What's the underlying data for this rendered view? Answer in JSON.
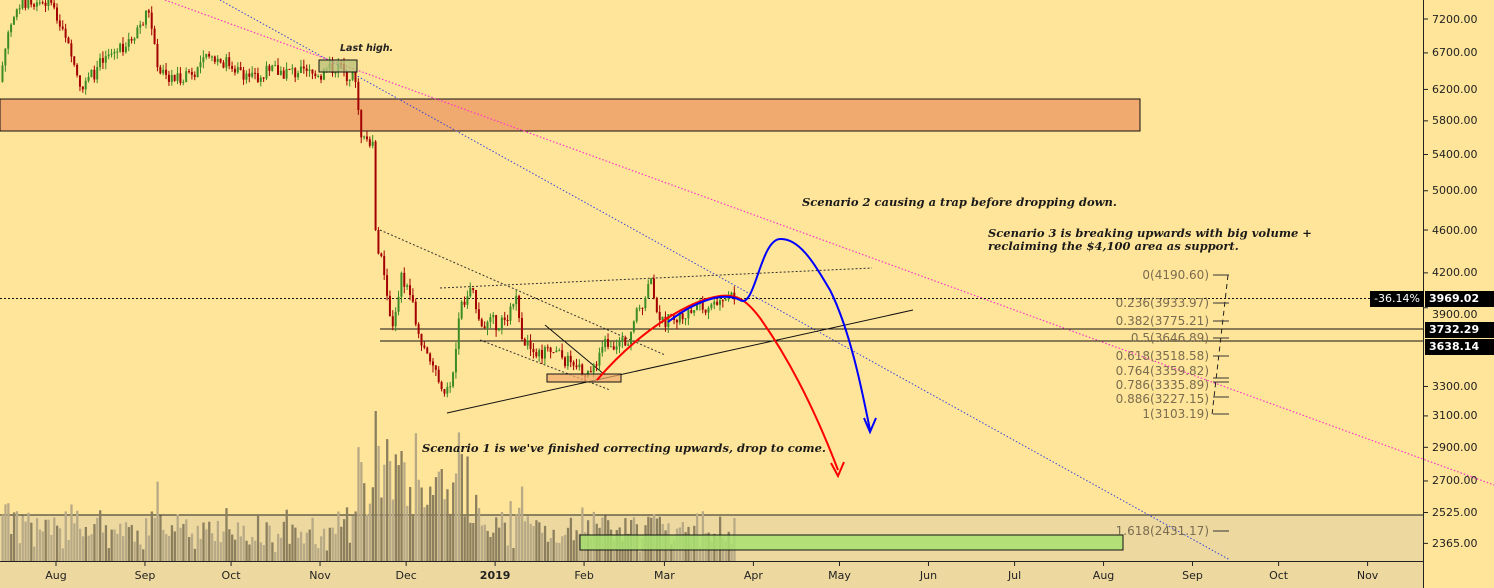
{
  "chart_data": {
    "type": "candlestick",
    "scale": "log",
    "ylim": [
      2300,
      7500
    ],
    "price_ticks": [
      7200,
      6700,
      6200,
      5800,
      5400,
      5000,
      4600,
      4200,
      3900,
      3300,
      3100,
      2900,
      2700,
      2525,
      2365
    ],
    "price_tick_labels": [
      "7200.00",
      "6700.00",
      "6200.00",
      "5800.00",
      "5400.00",
      "5000.00",
      "4600.00",
      "4200.00",
      "3900.00",
      "3300.00",
      "3100.00",
      "2900.00",
      "2700.00",
      "2525.00",
      "2365.00"
    ],
    "time_ticks": [
      {
        "date": "2018-08-01",
        "label": "Aug"
      },
      {
        "date": "2018-09-01",
        "label": "Sep"
      },
      {
        "date": "2018-10-01",
        "label": "Oct"
      },
      {
        "date": "2018-11-01",
        "label": "Nov"
      },
      {
        "date": "2018-12-01",
        "label": "Dec"
      },
      {
        "date": "2019-01-01",
        "label": "2019"
      },
      {
        "date": "2019-02-01",
        "label": "Feb"
      },
      {
        "date": "2019-03-01",
        "label": "Mar"
      },
      {
        "date": "2019-04-01",
        "label": "Apr"
      },
      {
        "date": "2019-05-01",
        "label": "May"
      },
      {
        "date": "2019-06-01",
        "label": "Jun"
      },
      {
        "date": "2019-07-01",
        "label": "Jul"
      },
      {
        "date": "2019-08-01",
        "label": "Aug"
      },
      {
        "date": "2019-09-01",
        "label": "Sep"
      },
      {
        "date": "2019-10-01",
        "label": "Oct"
      },
      {
        "date": "2019-11-01",
        "label": "Nov"
      }
    ],
    "price_path": [
      [
        "2018-07-12",
        6300
      ],
      [
        "2018-07-15",
        7000
      ],
      [
        "2018-07-18",
        7350
      ],
      [
        "2018-07-22",
        7500
      ],
      [
        "2018-07-30",
        7450
      ],
      [
        "2018-08-06",
        6650
      ],
      [
        "2018-08-10",
        6200
      ],
      [
        "2018-08-15",
        6500
      ],
      [
        "2018-08-26",
        6900
      ],
      [
        "2018-09-02",
        7300
      ],
      [
        "2018-09-05",
        6500
      ],
      [
        "2018-09-09",
        6300
      ],
      [
        "2018-09-19",
        6500
      ],
      [
        "2018-09-24",
        6650
      ],
      [
        "2018-10-03",
        6500
      ],
      [
        "2018-10-10",
        6300
      ],
      [
        "2018-10-14",
        6450
      ],
      [
        "2018-10-24",
        6420
      ],
      [
        "2018-10-31",
        6380
      ],
      [
        "2018-11-07",
        6550
      ],
      [
        "2018-11-13",
        6300
      ],
      [
        "2018-11-15",
        5600
      ],
      [
        "2018-11-19",
        5550
      ],
      [
        "2018-11-20",
        4600
      ],
      [
        "2018-11-24",
        4000
      ],
      [
        "2018-11-26",
        3750
      ],
      [
        "2018-11-29",
        4200
      ],
      [
        "2018-12-03",
        3950
      ],
      [
        "2018-12-06",
        3600
      ],
      [
        "2018-12-10",
        3450
      ],
      [
        "2018-12-14",
        3250
      ],
      [
        "2018-12-17",
        3400
      ],
      [
        "2018-12-20",
        3950
      ],
      [
        "2018-12-24",
        4050
      ],
      [
        "2018-12-27",
        3750
      ],
      [
        "2019-01-04",
        3800
      ],
      [
        "2019-01-08",
        4000
      ],
      [
        "2019-01-10",
        3650
      ],
      [
        "2019-01-14",
        3550
      ],
      [
        "2019-01-21",
        3550
      ],
      [
        "2019-01-28",
        3450
      ],
      [
        "2019-02-03",
        3400
      ],
      [
        "2019-02-08",
        3650
      ],
      [
        "2019-02-15",
        3600
      ],
      [
        "2019-02-20",
        3900
      ],
      [
        "2019-02-24",
        4150
      ],
      [
        "2019-02-27",
        3800
      ],
      [
        "2019-03-04",
        3800
      ],
      [
        "2019-03-11",
        3880
      ],
      [
        "2019-03-18",
        3950
      ],
      [
        "2019-03-23",
        4000
      ],
      [
        "2019-03-25",
        3969.02
      ]
    ],
    "colors": {
      "background": "#FFE599",
      "up": "#3B8C25",
      "down": "#A30000",
      "volume_dark": "#8C7F5E",
      "volume_light": "#B8AA86",
      "zone": "#F0A96E",
      "scenario_up": "#0000FF",
      "scenario_down": "#FF0000",
      "trend_blue": "#3344DD",
      "trend_pink": "#FF33CC"
    },
    "current_price": {
      "value": "3969.02",
      "change": "-36.14%"
    },
    "level_tags": [
      "3732.29",
      "3638.14"
    ],
    "fib_levels": [
      "0(4190.60)",
      "0.236(3933.97)",
      "0.382(3775.21)",
      "0.5(3646.89)",
      "0.618(3518.58)",
      "0.764(3359.82)",
      "0.786(3335.89)",
      "0.886(3227.15)",
      "1(3103.19)",
      "1.618(2431.17)"
    ],
    "annotations": {
      "last_high": "Last high.",
      "scenario_1": "Scenario 1 is we've finished correcting upwards, drop to come.",
      "scenario_2": "Scenario 2 causing a trap before dropping down.",
      "scenario_3_line1": "Scenario 3 is breaking upwards with big volume +",
      "scenario_3_line2": "reclaiming the $4,100 area as support."
    }
  }
}
